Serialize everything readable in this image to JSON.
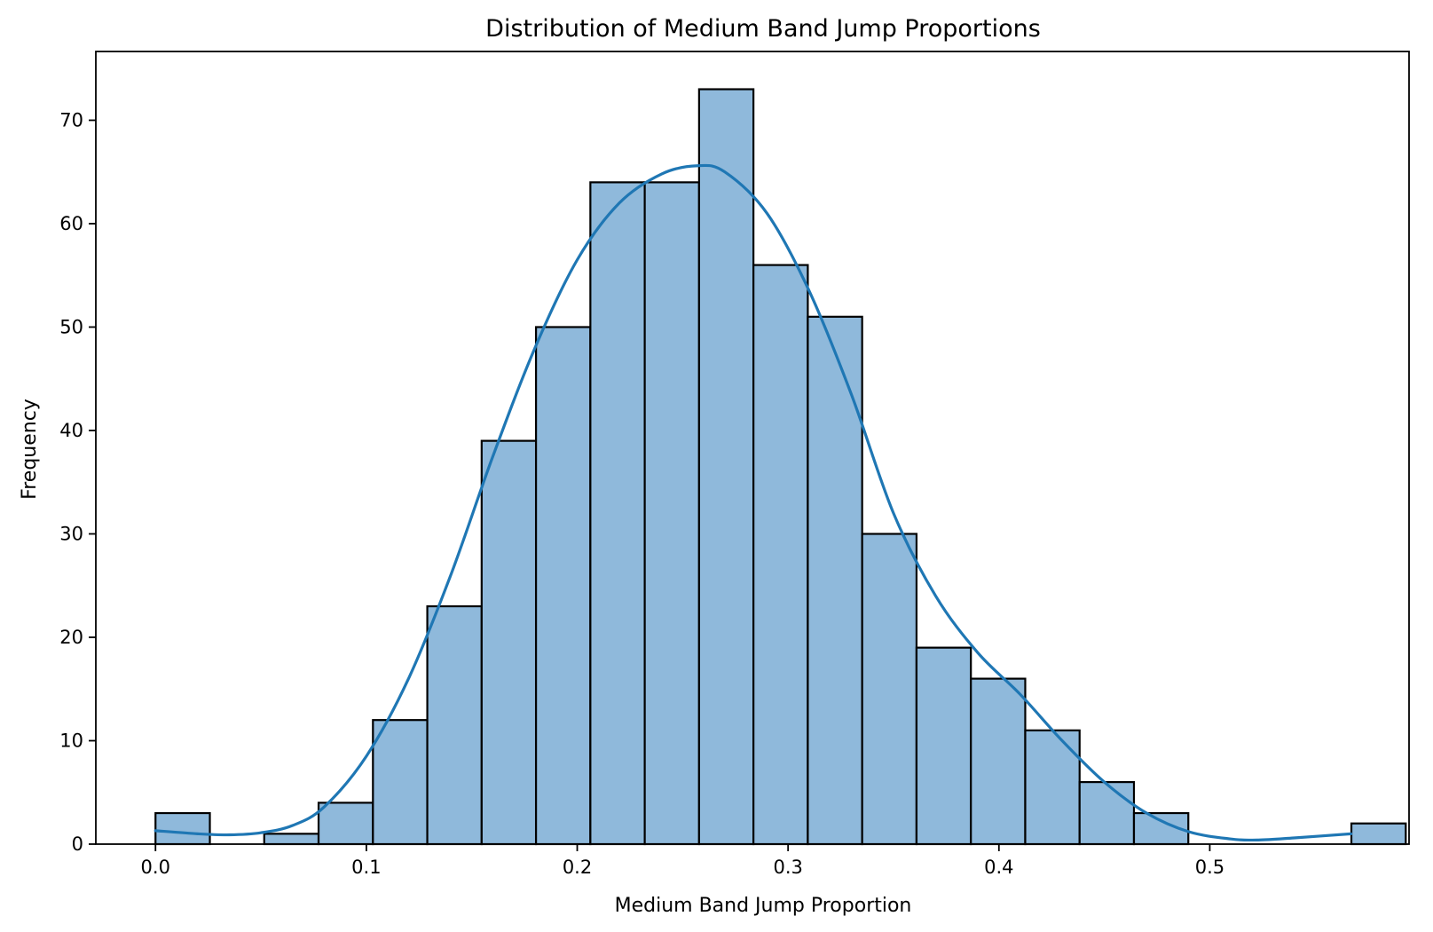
{
  "chart_data": {
    "type": "bar",
    "subtype": "histogram-with-kde",
    "title": "Distribution of Medium Band Jump Proportions",
    "xlabel": "Medium Band Jump Proportion",
    "ylabel": "Frequency",
    "xlim": [
      -0.0283,
      0.5945
    ],
    "ylim": [
      0,
      76.65
    ],
    "xticks": [
      0.0,
      0.1,
      0.2,
      0.3,
      0.4,
      0.5
    ],
    "xtick_labels": [
      "0.0",
      "0.1",
      "0.2",
      "0.3",
      "0.4",
      "0.5"
    ],
    "yticks": [
      0,
      10,
      20,
      30,
      40,
      50,
      60,
      70
    ],
    "ytick_labels": [
      "0",
      "10",
      "20",
      "30",
      "40",
      "50",
      "60",
      "70"
    ],
    "bin_start": 0.0,
    "bin_width": 0.02578,
    "values": [
      3,
      0,
      1,
      4,
      12,
      23,
      39,
      50,
      64,
      64,
      73,
      56,
      51,
      30,
      19,
      16,
      11,
      6,
      3,
      0,
      0,
      0,
      2
    ],
    "kde": {
      "x": [
        0.0,
        0.02,
        0.035,
        0.05,
        0.065,
        0.08,
        0.1,
        0.12,
        0.14,
        0.16,
        0.18,
        0.2,
        0.22,
        0.24,
        0.257,
        0.27,
        0.29,
        0.31,
        0.33,
        0.35,
        0.37,
        0.39,
        0.41,
        0.43,
        0.45,
        0.47,
        0.49,
        0.51,
        0.523,
        0.54,
        0.567
      ],
      "y": [
        1.3,
        1.0,
        0.9,
        1.1,
        1.8,
        3.6,
        8.5,
        16.0,
        26.0,
        37.5,
        48.0,
        56.5,
        62.0,
        64.8,
        65.6,
        65.0,
        61.0,
        53.5,
        43.5,
        32.0,
        24.0,
        18.5,
        14.5,
        10.0,
        6.0,
        3.0,
        1.2,
        0.5,
        0.4,
        0.6,
        1.0
      ]
    },
    "grid": false,
    "legend": "none",
    "colors": {
      "bar_fill": "#8fb9db",
      "bar_edge": "#000000",
      "kde_line": "#1f77b4",
      "axes": "#000000",
      "background": "#ffffff"
    }
  }
}
